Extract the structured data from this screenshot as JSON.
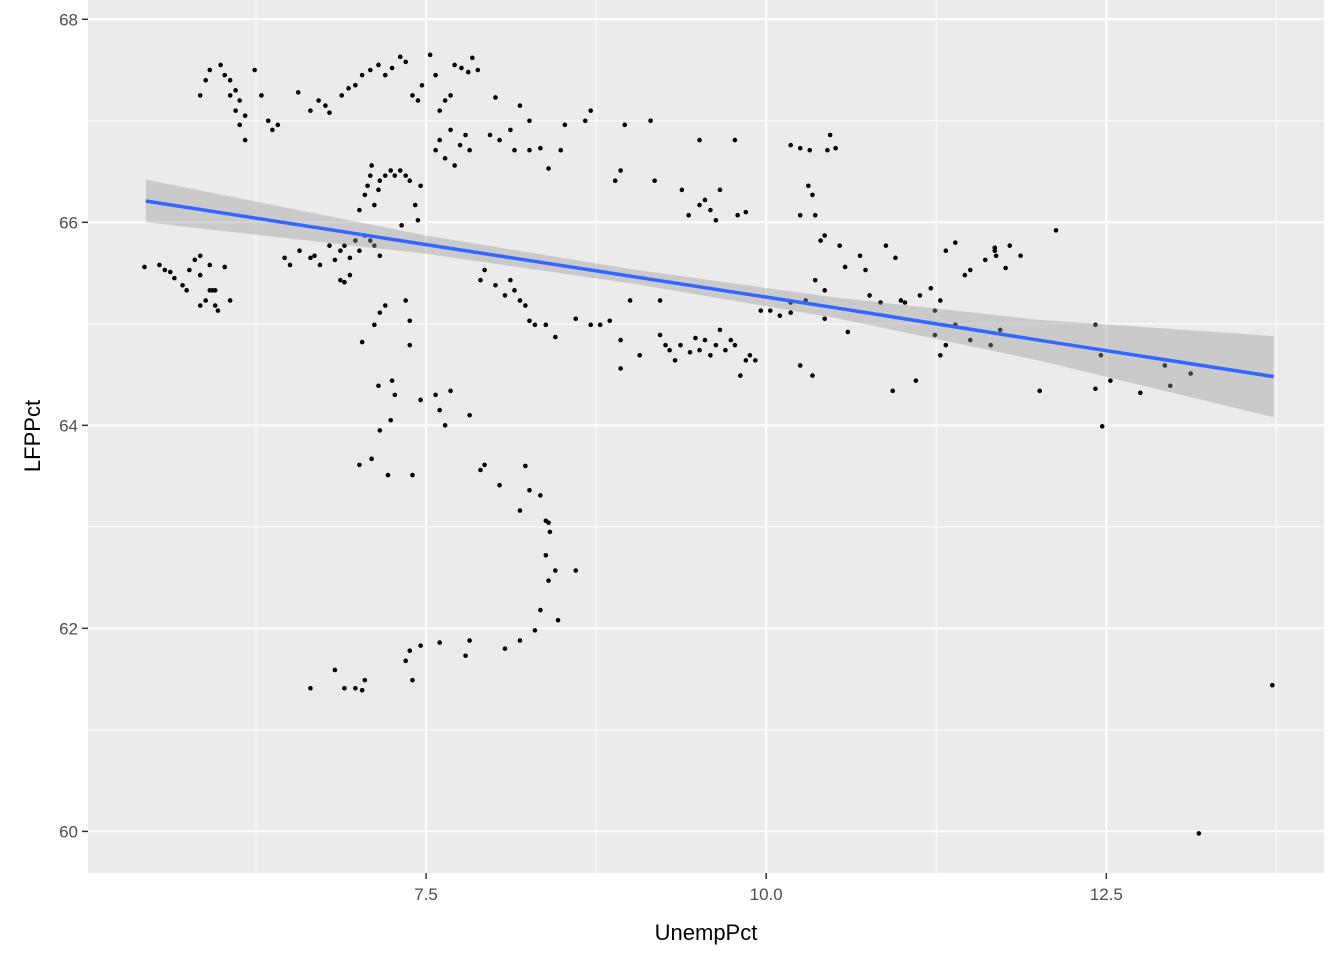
{
  "chart_data": {
    "type": "scatter",
    "x_label": "UnempPct",
    "y_label": "LFPPct",
    "color": "#000000",
    "xlim": [
      5.015,
      14.1
    ],
    "ylim": [
      59.59,
      68.19
    ],
    "xticks": [
      7.5,
      {
        "value": 10,
        "label": "10.0"
      },
      12.5
    ],
    "yticks": [
      60,
      62,
      64,
      66,
      68
    ],
    "x_minor_grid": [
      6.25,
      8.75,
      11.25,
      13.75
    ],
    "y_minor_grid": [
      61,
      63,
      65,
      67
    ],
    "grid": true,
    "panel_color": "#ebebeb",
    "x": [
      5.43,
      5.54,
      5.62,
      5.58,
      5.65,
      5.71,
      5.74,
      5.76,
      5.8,
      5.84,
      5.84,
      5.88,
      5.91,
      5.91,
      5.95,
      5.93,
      5.97,
      5.95,
      6.02,
      6.06,
      5.84,
      5.84,
      5.88,
      5.91,
      5.99,
      6.02,
      6.06,
      6.1,
      6.13,
      6.1,
      6.17,
      6.13,
      6.17,
      6.24,
      6.29,
      6.34,
      6.37,
      6.41,
      6.06,
      6.57,
      6.65,
      6.68,
      6.72,
      6.79,
      6.83,
      6.87,
      6.9,
      6.94,
      6.98,
      7.01,
      7.05,
      7.09,
      7.12,
      7.16,
      6.87,
      6.94,
      6.9,
      6.5,
      6.46,
      7.01,
      7.05,
      7.07,
      7.09,
      7.1,
      7.12,
      7.15,
      7.16,
      7.2,
      7.24,
      7.27,
      7.31,
      7.35,
      7.38,
      7.42,
      7.44,
      7.46,
      7.32,
      6.56,
      6.65,
      6.71,
      6.76,
      6.79,
      6.88,
      6.93,
      6.98,
      7.03,
      7.09,
      7.15,
      7.2,
      7.25,
      7.31,
      7.35,
      7.4,
      7.44,
      7.47,
      7.53,
      7.57,
      7.6,
      7.64,
      7.68,
      7.71,
      7.76,
      7.81,
      7.84,
      7.88,
      7.03,
      7.12,
      7.16,
      7.2,
      7.15,
      7.16,
      7.24,
      7.25,
      7.27,
      7.35,
      7.38,
      7.38,
      7.01,
      7.1,
      7.22,
      7.4,
      7.46,
      7.57,
      7.6,
      7.64,
      7.68,
      7.82,
      7.03,
      7.05,
      6.98,
      6.9,
      6.83,
      6.65,
      7.35,
      7.38,
      7.4,
      7.46,
      7.57,
      7.6,
      7.64,
      7.68,
      7.71,
      7.75,
      7.79,
      7.82,
      7.97,
      8.04,
      8.12,
      8.15,
      8.26,
      8.34,
      8.49,
      8.52,
      8.67,
      8.71,
      8.19,
      8.01,
      8.26,
      8.4,
      7.9,
      7.93,
      8.01,
      8.08,
      8.12,
      8.15,
      8.19,
      8.23,
      8.26,
      8.3,
      8.38,
      8.45,
      8.6,
      8.71,
      8.78,
      8.85,
      8.93,
      9.0,
      7.9,
      7.93,
      8.04,
      8.19,
      8.23,
      8.26,
      8.34,
      8.38,
      8.4,
      8.41,
      8.38,
      8.4,
      8.34,
      8.45,
      8.47,
      8.6,
      8.3,
      8.19,
      8.08,
      7.82,
      7.79,
      7.6,
      9.22,
      9.26,
      9.29,
      9.33,
      9.37,
      9.44,
      9.48,
      9.51,
      9.55,
      9.59,
      9.63,
      9.66,
      9.7,
      9.77,
      9.81,
      9.85,
      9.88,
      9.92,
      9.74,
      9.38,
      9.43,
      9.51,
      9.55,
      9.59,
      9.63,
      9.66,
      9.79,
      9.85,
      8.96,
      9.15,
      9.18,
      8.93,
      8.89,
      9.22,
      8.93,
      9.07,
      9.51,
      9.77,
      10.18,
      10.25,
      10.32,
      10.45,
      10.47,
      10.51,
      10.25,
      10.31,
      10.34,
      10.36,
      10.4,
      10.43,
      10.54,
      10.69,
      10.88,
      10.95,
      10.58,
      10.73,
      10.18,
      10.18,
      10.29,
      10.43,
      10.6,
      10.76,
      10.84,
      10.99,
      10.93,
      11.1,
      11.28,
      11.32,
      11.24,
      11.02,
      11.13,
      11.21,
      11.28,
      11.32,
      11.39,
      11.46,
      11.5,
      11.61,
      11.68,
      11.76,
      11.79,
      11.87,
      12.13,
      12.01,
      11.65,
      11.72,
      11.24,
      11.39,
      11.5,
      11.68,
      11.69,
      12.42,
      12.46,
      12.47,
      12.53,
      12.42,
      12.75,
      12.93,
      12.97,
      13.12,
      13.18,
      13.72,
      10.25,
      10.34,
      10.03,
      10.1,
      9.96,
      10.36,
      10.43
    ],
    "values": [
      65.56,
      65.58,
      65.51,
      65.53,
      65.45,
      65.38,
      65.33,
      65.53,
      65.63,
      65.67,
      65.48,
      65.23,
      65.33,
      65.58,
      65.18,
      65.33,
      65.13,
      65.33,
      65.56,
      65.23,
      65.18,
      67.25,
      67.4,
      67.5,
      67.55,
      67.45,
      67.4,
      67.3,
      67.2,
      67.1,
      67.05,
      66.96,
      66.81,
      67.5,
      67.25,
      67.0,
      66.91,
      66.96,
      67.25,
      65.72,
      65.65,
      65.67,
      65.58,
      65.77,
      65.63,
      65.72,
      65.77,
      65.65,
      65.82,
      65.72,
      65.87,
      65.82,
      65.77,
      65.67,
      65.43,
      65.48,
      65.41,
      65.58,
      65.65,
      66.12,
      66.27,
      66.36,
      66.46,
      66.56,
      66.17,
      66.32,
      66.41,
      66.46,
      66.51,
      66.46,
      66.51,
      66.46,
      66.41,
      66.17,
      66.02,
      66.36,
      65.97,
      67.28,
      67.1,
      67.2,
      67.15,
      67.08,
      67.25,
      67.32,
      67.35,
      67.45,
      67.5,
      67.55,
      67.45,
      67.52,
      67.63,
      67.58,
      67.25,
      67.2,
      67.35,
      67.65,
      67.45,
      67.1,
      67.2,
      67.25,
      67.55,
      67.52,
      67.48,
      67.62,
      67.5,
      64.82,
      64.99,
      65.11,
      65.18,
      64.39,
      63.95,
      64.05,
      64.44,
      64.3,
      65.23,
      65.03,
      64.79,
      63.61,
      63.67,
      63.51,
      63.51,
      64.25,
      64.3,
      64.15,
      64.0,
      64.34,
      64.1,
      61.39,
      61.49,
      61.41,
      61.41,
      61.59,
      61.41,
      61.68,
      61.78,
      61.49,
      61.83,
      66.71,
      66.81,
      66.63,
      66.91,
      66.56,
      66.76,
      66.86,
      66.71,
      66.86,
      66.81,
      66.91,
      66.71,
      66.71,
      66.73,
      66.71,
      66.96,
      67.0,
      67.1,
      67.15,
      67.23,
      67.0,
      66.53,
      65.43,
      65.53,
      65.38,
      65.28,
      65.43,
      65.33,
      65.23,
      65.18,
      65.03,
      64.99,
      64.99,
      64.87,
      65.05,
      64.99,
      64.99,
      65.03,
      64.84,
      65.23,
      63.56,
      63.61,
      63.41,
      63.16,
      63.6,
      63.36,
      63.31,
      63.06,
      63.04,
      62.95,
      62.72,
      62.47,
      62.18,
      62.57,
      62.08,
      62.57,
      61.98,
      61.88,
      61.8,
      61.88,
      61.73,
      61.86,
      64.89,
      64.79,
      64.74,
      64.64,
      64.79,
      64.72,
      64.86,
      64.74,
      64.84,
      64.69,
      64.79,
      64.94,
      64.74,
      64.79,
      64.49,
      64.64,
      64.69,
      64.64,
      64.84,
      66.32,
      66.07,
      66.17,
      66.22,
      66.12,
      66.02,
      66.32,
      66.07,
      66.1,
      66.96,
      67.0,
      66.41,
      66.51,
      66.41,
      65.23,
      64.56,
      64.69,
      66.81,
      66.81,
      66.76,
      66.73,
      66.71,
      66.71,
      66.86,
      66.73,
      66.07,
      66.36,
      66.27,
      66.07,
      65.82,
      65.87,
      65.77,
      65.67,
      65.77,
      65.65,
      65.56,
      65.53,
      65.21,
      65.11,
      65.23,
      65.05,
      64.92,
      65.28,
      65.21,
      65.23,
      64.34,
      64.44,
      64.69,
      64.79,
      64.89,
      65.21,
      65.28,
      65.35,
      65.23,
      65.72,
      65.8,
      65.48,
      65.53,
      65.63,
      65.72,
      65.55,
      65.77,
      65.67,
      65.92,
      64.34,
      64.79,
      64.94,
      65.13,
      64.99,
      64.84,
      65.75,
      65.67,
      64.99,
      64.69,
      63.99,
      64.44,
      64.36,
      64.32,
      64.59,
      64.39,
      64.51,
      59.98,
      61.44,
      64.59,
      64.49,
      65.13,
      65.08,
      65.13,
      65.43,
      65.33
    ],
    "smooth": {
      "color": "#3366FF",
      "band_color": "#999999",
      "x": [
        5.44,
        7.5,
        9.0,
        10.5,
        12.0,
        13.73
      ],
      "values": [
        66.21,
        65.78,
        65.47,
        65.16,
        64.84,
        64.48
      ],
      "lower": [
        66.0,
        65.69,
        65.4,
        65.06,
        64.64,
        64.08
      ],
      "upper": [
        66.42,
        65.87,
        65.54,
        65.26,
        65.04,
        64.88
      ]
    }
  }
}
